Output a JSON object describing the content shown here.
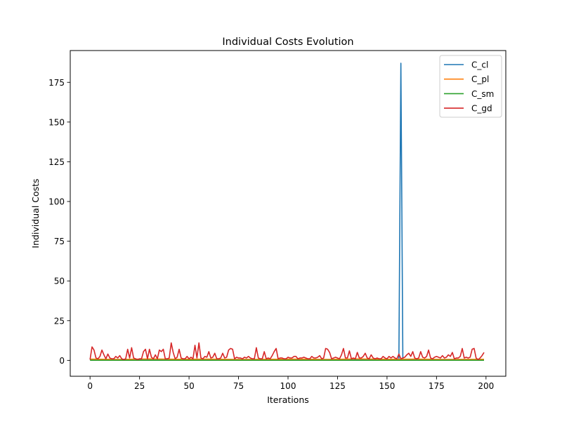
{
  "chart_data": {
    "type": "line",
    "title": "Individual Costs Evolution",
    "xlabel": "Iterations",
    "ylabel": "Individual Costs",
    "xlim": [
      -10,
      210
    ],
    "ylim": [
      -10,
      195
    ],
    "xticks": [
      0,
      25,
      50,
      75,
      100,
      125,
      150,
      175,
      200
    ],
    "yticks": [
      0,
      25,
      50,
      75,
      100,
      125,
      150,
      175
    ],
    "grid": false,
    "legend_position": "upper right",
    "series": [
      {
        "name": "C_cl",
        "color": "#1f77b4",
        "x": [
          0,
          155,
          156,
          157,
          158,
          159,
          199
        ],
        "y": [
          0.5,
          0.5,
          0.5,
          187,
          0.5,
          0.5,
          0.5
        ]
      },
      {
        "name": "C_pl",
        "color": "#ff7f0e",
        "x": [
          0,
          15,
          30,
          45,
          60,
          75,
          90,
          105,
          120,
          135,
          150,
          165,
          180,
          199
        ],
        "y": [
          0.8,
          0.6,
          0.9,
          0.7,
          0.8,
          0.6,
          0.7,
          0.8,
          0.6,
          0.9,
          0.7,
          0.8,
          0.6,
          0.7
        ]
      },
      {
        "name": "C_sm",
        "color": "#2ca02c",
        "x": [
          0,
          199
        ],
        "y": [
          0.1,
          0.1
        ]
      },
      {
        "name": "C_gd",
        "color": "#d62728",
        "x": [
          0,
          1,
          2,
          3,
          4,
          5,
          6,
          7,
          8,
          9,
          10,
          11,
          12,
          13,
          14,
          15,
          16,
          17,
          18,
          19,
          20,
          21,
          22,
          23,
          24,
          25,
          26,
          27,
          28,
          29,
          30,
          31,
          32,
          33,
          34,
          35,
          36,
          37,
          38,
          39,
          40,
          41,
          42,
          43,
          44,
          45,
          46,
          47,
          48,
          49,
          50,
          51,
          52,
          53,
          54,
          55,
          56,
          57,
          58,
          59,
          60,
          61,
          62,
          63,
          64,
          65,
          66,
          67,
          68,
          69,
          70,
          71,
          72,
          73,
          74,
          75,
          76,
          77,
          78,
          79,
          80,
          81,
          82,
          83,
          84,
          85,
          86,
          87,
          88,
          89,
          90,
          91,
          92,
          93,
          94,
          95,
          96,
          97,
          98,
          99,
          100,
          101,
          102,
          103,
          104,
          105,
          106,
          107,
          108,
          109,
          110,
          111,
          112,
          113,
          114,
          115,
          116,
          117,
          118,
          119,
          120,
          121,
          122,
          123,
          124,
          125,
          126,
          127,
          128,
          129,
          130,
          131,
          132,
          133,
          134,
          135,
          136,
          137,
          138,
          139,
          140,
          141,
          142,
          143,
          144,
          145,
          146,
          147,
          148,
          149,
          150,
          151,
          152,
          153,
          154,
          155,
          156,
          157,
          158,
          159,
          160,
          161,
          162,
          163,
          164,
          165,
          166,
          167,
          168,
          169,
          170,
          171,
          172,
          173,
          174,
          175,
          176,
          177,
          178,
          179,
          180,
          181,
          182,
          183,
          184,
          185,
          186,
          187,
          188,
          189,
          190,
          191,
          192,
          193,
          194,
          195,
          196,
          197,
          198,
          199
        ],
        "y": [
          0.5,
          8.5,
          6.5,
          1.5,
          1.0,
          2.5,
          6.5,
          3.5,
          1.0,
          4.0,
          1.5,
          1.0,
          1.0,
          2.5,
          1.5,
          3.0,
          1.0,
          0.5,
          1.0,
          7.0,
          1.5,
          8.0,
          1.5,
          1.0,
          0.5,
          1.0,
          1.0,
          5.5,
          7.0,
          1.0,
          7.0,
          2.0,
          1.0,
          3.5,
          1.0,
          6.5,
          5.5,
          7.0,
          1.0,
          1.0,
          1.5,
          11.0,
          5.0,
          1.0,
          2.0,
          7.0,
          1.5,
          1.0,
          1.0,
          2.5,
          1.0,
          2.0,
          1.0,
          9.5,
          1.5,
          11.0,
          1.5,
          1.0,
          2.5,
          2.0,
          5.5,
          1.5,
          2.0,
          4.5,
          1.0,
          1.0,
          1.5,
          4.5,
          1.5,
          2.0,
          6.5,
          7.5,
          7.0,
          1.0,
          2.0,
          1.5,
          1.5,
          1.0,
          2.0,
          1.5,
          2.5,
          1.5,
          1.0,
          1.0,
          8.0,
          1.5,
          1.0,
          1.0,
          5.5,
          1.0,
          1.5,
          1.0,
          3.0,
          5.5,
          7.5,
          1.0,
          1.5,
          1.5,
          1.0,
          1.0,
          2.0,
          1.5,
          1.5,
          2.5,
          2.5,
          1.0,
          1.5,
          1.5,
          2.0,
          1.5,
          1.0,
          1.0,
          2.5,
          1.5,
          1.5,
          2.0,
          3.0,
          1.0,
          1.5,
          7.5,
          7.0,
          5.0,
          1.0,
          1.5,
          2.0,
          1.5,
          1.0,
          3.5,
          7.5,
          1.5,
          1.5,
          6.0,
          1.0,
          1.5,
          1.0,
          5.0,
          1.5,
          1.5,
          2.5,
          4.5,
          1.5,
          1.0,
          3.5,
          1.5,
          1.0,
          1.5,
          1.0,
          1.0,
          2.5,
          1.5,
          1.0,
          2.5,
          1.5,
          2.5,
          1.5,
          1.0,
          4.0,
          1.0,
          1.5,
          2.0,
          3.5,
          4.5,
          2.5,
          5.5,
          1.5,
          1.0,
          1.5,
          5.5,
          2.0,
          1.5,
          2.5,
          6.5,
          1.5,
          1.0,
          2.0,
          2.5,
          2.0,
          1.5,
          3.0,
          1.5,
          2.0,
          3.5,
          2.5,
          5.0,
          1.0,
          1.5,
          1.5,
          2.5,
          7.5,
          1.5,
          2.0,
          1.5,
          2.0,
          7.0,
          7.5,
          1.5,
          0.5,
          1.5,
          3.0,
          5.0
        ]
      }
    ]
  }
}
